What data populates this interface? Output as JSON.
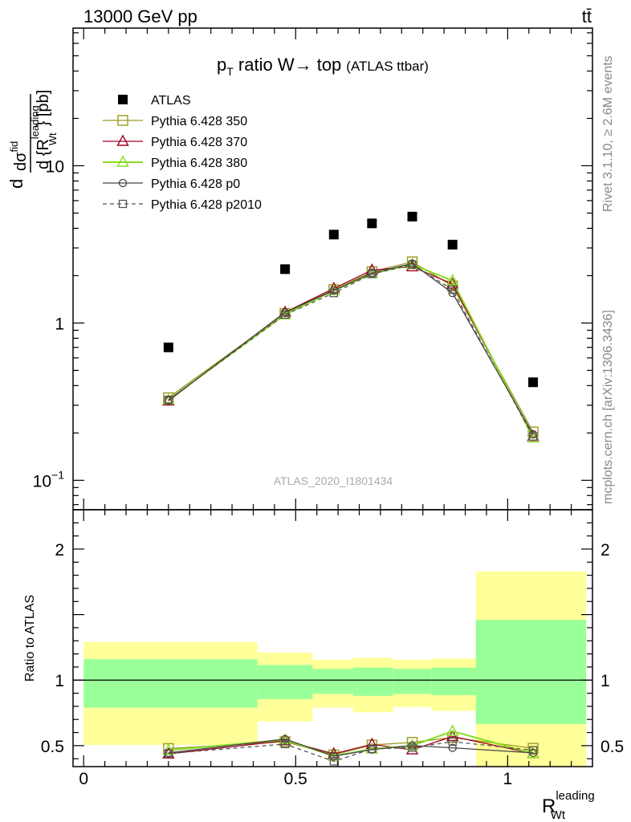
{
  "header": {
    "energy_label": "13000 GeV pp",
    "process_label": "tt̄"
  },
  "side_text": {
    "rivet": "Rivet 3.1.10, ≥ 2.6M events",
    "site": "mcplots.cern.ch [arXiv:1306.3436]"
  },
  "colors": {
    "atlas": "#000000",
    "p350": "#9a9a20",
    "p370": "#a00020",
    "p380": "#88dd22",
    "p0": "#444444",
    "p2010": "#555555",
    "band_outer": "#ffff99",
    "band_inner": "#99ff99"
  },
  "chart_data": [
    {
      "type": "scatter",
      "panel": "main",
      "title": "p_T ratio W→ top (ATLAS ttbar)",
      "title_parts": {
        "main": "p",
        "sub": "T",
        "rest": " ratio W→ top",
        "small": "(ATLAS ttbar)"
      },
      "watermark": "ATLAS_2020_I1801434",
      "ylabel": "d σ^fid / d {R_Wt^leading} [pb]",
      "ylabel_parts": {
        "d1": "d",
        "sigma": "dσ",
        "fid": "fid",
        "d2": "d {R",
        "sup": "leading",
        "sub": "Wt",
        "close": "} [pb]"
      },
      "yscale": "log",
      "ylim": [
        0.065,
        75
      ],
      "xlim": [
        -0.025,
        1.2
      ],
      "ytick_labels": [
        {
          "value": 0.1,
          "base": "10",
          "exp": "−1"
        },
        {
          "value": 1,
          "base": "1",
          "exp": ""
        },
        {
          "value": 10,
          "base": "10",
          "exp": ""
        }
      ],
      "legend_placement": "top-left",
      "x": [
        0.2,
        0.475,
        0.59,
        0.68,
        0.775,
        0.87,
        1.06
      ],
      "series": [
        {
          "name": "ATLAS",
          "key": "atlas",
          "marker": "filled-square",
          "values": [
            0.7,
            2.2,
            3.65,
            4.3,
            4.75,
            3.15,
            0.42
          ]
        },
        {
          "name": "Pythia 6.428 350",
          "key": "p350",
          "marker": "open-square",
          "values": [
            0.335,
            1.15,
            1.63,
            2.12,
            2.45,
            1.72,
            0.203
          ]
        },
        {
          "name": "Pythia 6.428 370",
          "key": "p370",
          "marker": "open-triangle",
          "values": [
            0.32,
            1.17,
            1.66,
            2.17,
            2.28,
            1.77,
            0.19
          ]
        },
        {
          "name": "Pythia 6.428 380",
          "key": "p380",
          "marker": "open-triangle",
          "values": [
            0.325,
            1.13,
            1.61,
            2.06,
            2.35,
            1.86,
            0.186
          ]
        },
        {
          "name": "Pythia 6.428 p0",
          "key": "p0",
          "marker": "open-circle",
          "values": [
            0.322,
            1.17,
            1.61,
            2.08,
            2.39,
            1.55,
            0.196
          ]
        },
        {
          "name": "Pythia 6.428 p2010",
          "key": "p2010",
          "marker": "open-square-small",
          "dashed": true,
          "values": [
            0.325,
            1.13,
            1.55,
            2.05,
            2.35,
            1.63,
            0.19
          ]
        }
      ]
    },
    {
      "type": "line",
      "panel": "ratio",
      "ylabel": "Ratio to ATLAS",
      "xlabel": "R_Wt^leading",
      "xlabel_parts": {
        "main": "R",
        "sup": "leading",
        "sub": "Wt"
      },
      "xlim": [
        -0.025,
        1.2
      ],
      "ylim": [
        0.34,
        2.3
      ],
      "ytick_labels": [
        0.5,
        1,
        2
      ],
      "xtick_labels": [
        0,
        0.5,
        1
      ],
      "xtick_text": [
        "0",
        "0.5",
        "1"
      ],
      "bins": [
        {
          "lo": 0.0,
          "hi": 0.41,
          "inner": [
            0.79,
            1.16
          ],
          "outer": [
            0.505,
            1.29
          ]
        },
        {
          "lo": 0.41,
          "hi": 0.54,
          "inner": [
            0.855,
            1.115
          ],
          "outer": [
            0.685,
            1.21
          ]
        },
        {
          "lo": 0.54,
          "hi": 0.635,
          "inner": [
            0.895,
            1.085
          ],
          "outer": [
            0.79,
            1.155
          ]
        },
        {
          "lo": 0.635,
          "hi": 0.73,
          "inner": [
            0.88,
            1.095
          ],
          "outer": [
            0.755,
            1.17
          ]
        },
        {
          "lo": 0.73,
          "hi": 0.82,
          "inner": [
            0.895,
            1.085
          ],
          "outer": [
            0.795,
            1.155
          ]
        },
        {
          "lo": 0.82,
          "hi": 0.925,
          "inner": [
            0.885,
            1.095
          ],
          "outer": [
            0.765,
            1.165
          ]
        },
        {
          "lo": 0.925,
          "hi": 1.2,
          "inner": [
            0.665,
            1.46
          ],
          "outer": [
            0.34,
            1.83
          ]
        }
      ],
      "x": [
        0.2,
        0.475,
        0.59,
        0.68,
        0.775,
        0.87,
        1.06
      ],
      "series": [
        {
          "key": "p350",
          "values": [
            0.478,
            0.53,
            0.43,
            0.505,
            0.525,
            0.562,
            0.48
          ]
        },
        {
          "key": "p370",
          "values": [
            0.437,
            0.538,
            0.438,
            0.51,
            0.468,
            0.57,
            0.44
          ]
        },
        {
          "key": "p380",
          "values": [
            0.465,
            0.545,
            0.42,
            0.475,
            0.5,
            0.61,
            0.44
          ]
        },
        {
          "key": "p0",
          "values": [
            0.445,
            0.55,
            0.42,
            0.47,
            0.5,
            0.483,
            0.445
          ]
        },
        {
          "key": "p2010",
          "values": [
            0.44,
            0.512,
            0.38,
            0.475,
            0.485,
            0.53,
            0.465
          ]
        }
      ]
    }
  ]
}
